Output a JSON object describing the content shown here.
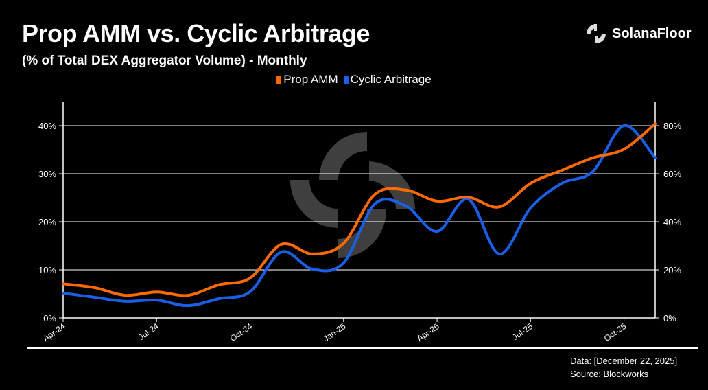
{
  "header": {
    "title": "Prop AMM vs. Cyclic Arbitrage",
    "subtitle": "(% of Total DEX Aggregator Volume) - Monthly",
    "brand": "SolanaFloor"
  },
  "footer": {
    "data_note": "Data: [December 22, 2025]",
    "source": "Source: Blockworks"
  },
  "chart_data": {
    "type": "line",
    "title": "Prop AMM vs. Cyclic Arbitrage",
    "subtitle": "(% of Total DEX Aggregator Volume) - Monthly",
    "x": [
      "Apr-24",
      "May-24",
      "Jun-24",
      "Jul-24",
      "Aug-24",
      "Sep-24",
      "Oct-24",
      "Nov-24",
      "Dec-24",
      "Jan-25",
      "Feb-25",
      "Mar-25",
      "Apr-25",
      "May-25",
      "Jun-25",
      "Jul-25",
      "Aug-25",
      "Sep-25",
      "Oct-25",
      "Nov-25"
    ],
    "x_ticks": [
      "Apr-24",
      "Jul-24",
      "Oct-24",
      "Jan-25",
      "Apr-25",
      "Jul-25",
      "Oct-25"
    ],
    "y_left_ticks": [
      "0%",
      "10%",
      "20%",
      "30%",
      "40%"
    ],
    "y_right_ticks": [
      "0%",
      "20%",
      "40%",
      "60%",
      "80%"
    ],
    "y_left_range": [
      0,
      45
    ],
    "y_right_range": [
      0,
      90
    ],
    "grid": true,
    "legend_position": "top-center",
    "series": [
      {
        "name": "Prop AMM",
        "axis": "left",
        "color": "#ff6a00",
        "values": [
          7.1,
          6.3,
          4.7,
          5.4,
          4.7,
          6.9,
          8.3,
          15.3,
          13.3,
          15.5,
          25.7,
          26.6,
          24.3,
          25.1,
          23.1,
          28.0,
          30.7,
          33.3,
          35.1,
          40.4
        ]
      },
      {
        "name": "Cyclic Arbitrage",
        "axis": "right",
        "color": "#1a5fe8",
        "values": [
          10.3,
          8.6,
          6.9,
          7.4,
          5.1,
          8.0,
          10.9,
          27.4,
          20.3,
          22.9,
          47.4,
          46.6,
          36.0,
          49.4,
          26.6,
          45.7,
          56.0,
          60.9,
          80.0,
          66.6
        ]
      }
    ]
  }
}
